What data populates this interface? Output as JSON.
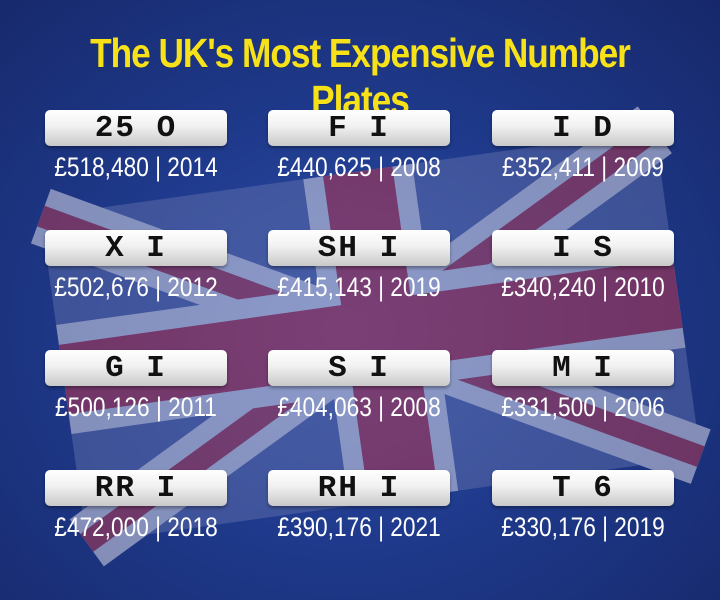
{
  "title": "The UK's Most Expensive Number Plates",
  "colors": {
    "title": "#f7e21a",
    "background": "#1f3a8c",
    "plate": "#f1f1f1"
  },
  "plates": [
    {
      "plate": "25 O",
      "price": "£518,480 | 2014"
    },
    {
      "plate": "F I",
      "price": "£440,625 | 2008"
    },
    {
      "plate": "I D",
      "price": "£352,411 | 2009"
    },
    {
      "plate": "X I",
      "price": "£502,676 | 2012"
    },
    {
      "plate": "SH I",
      "price": "£415,143 | 2019"
    },
    {
      "plate": "I S",
      "price": "£340,240 | 2010"
    },
    {
      "plate": "G I",
      "price": "£500,126 | 2011"
    },
    {
      "plate": "S I",
      "price": "£404,063 | 2008"
    },
    {
      "plate": "M I",
      "price": "£331,500 | 2006"
    },
    {
      "plate": "RR I",
      "price": "£472,000 | 2018"
    },
    {
      "plate": "RH I",
      "price": "£390,176 | 2021"
    },
    {
      "plate": "T 6",
      "price": "£330,176 | 2019"
    }
  ]
}
